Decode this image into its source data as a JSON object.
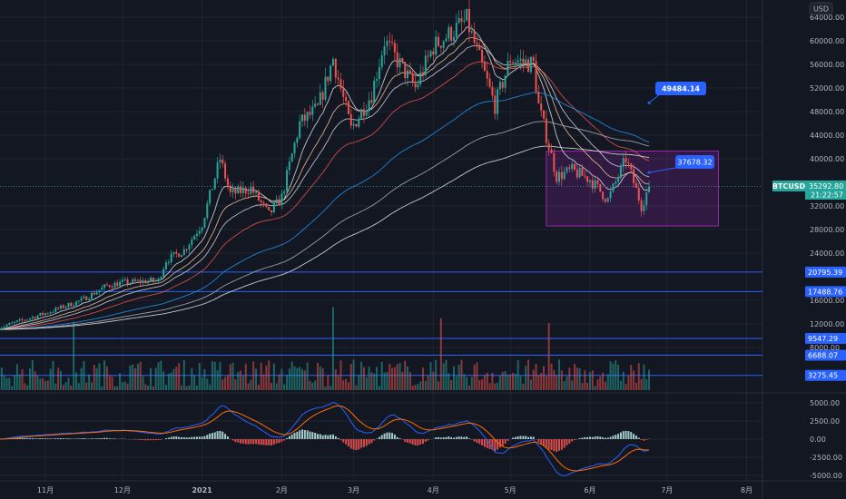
{
  "symbol": "BTCUSD",
  "currency": "USD",
  "last_price": "35292.80",
  "countdown": "21:22:57",
  "colors": {
    "up": "#26a69a",
    "down": "#ef5350",
    "line_level": "#2962ff",
    "box": "#9c27b0",
    "bg": "#131722"
  },
  "chart_data": [
    {
      "type": "candlestick",
      "pane": "price",
      "ylim": [
        0,
        66000
      ],
      "y_ticks": [
        "64000.00",
        "60000.00",
        "56000.00",
        "52000.00",
        "48000.00",
        "44000.00",
        "40000.00",
        "32000.00",
        "28000.00",
        "24000.00",
        "16000.00",
        "12000.00",
        "8000.00"
      ],
      "y_tick_values": [
        64000,
        60000,
        56000,
        52000,
        48000,
        44000,
        40000,
        32000,
        28000,
        24000,
        16000,
        12000,
        8000
      ],
      "x_ticks": [
        "11月",
        "12月",
        "2021",
        "2月",
        "3月",
        "4月",
        "5月",
        "6月",
        "7月",
        "8月"
      ],
      "x_tick_dates": [
        "2020-11-01",
        "2020-12-01",
        "2021-01-01",
        "2021-02-01",
        "2021-03-01",
        "2021-04-01",
        "2021-05-01",
        "2021-06-01",
        "2021-07-01",
        "2021-08-01"
      ],
      "price_path": [
        [
          "2020-10-14",
          11400
        ],
        [
          "2020-11-01",
          13800
        ],
        [
          "2020-11-15",
          16000
        ],
        [
          "2020-11-25",
          18500
        ],
        [
          "2020-12-01",
          19000
        ],
        [
          "2020-12-15",
          19400
        ],
        [
          "2020-12-18",
          22800
        ],
        [
          "2020-12-25",
          24500
        ],
        [
          "2021-01-01",
          29000
        ],
        [
          "2021-01-08",
          40000
        ],
        [
          "2021-01-12",
          34000
        ],
        [
          "2021-01-20",
          35000
        ],
        [
          "2021-01-27",
          30500
        ],
        [
          "2021-02-01",
          33500
        ],
        [
          "2021-02-08",
          46000
        ],
        [
          "2021-02-15",
          48500
        ],
        [
          "2021-02-21",
          57000
        ],
        [
          "2021-02-28",
          45000
        ],
        [
          "2021-03-08",
          51000
        ],
        [
          "2021-03-13",
          60000
        ],
        [
          "2021-03-25",
          52000
        ],
        [
          "2021-04-01",
          59000
        ],
        [
          "2021-04-14",
          63500
        ],
        [
          "2021-04-25",
          49000
        ],
        [
          "2021-05-01",
          57000
        ],
        [
          "2021-05-10",
          56000
        ],
        [
          "2021-05-12",
          49000
        ],
        [
          "2021-05-19",
          37000
        ],
        [
          "2021-05-25",
          38000
        ],
        [
          "2021-06-01",
          36500
        ],
        [
          "2021-06-08",
          33000
        ],
        [
          "2021-06-15",
          40000
        ],
        [
          "2021-06-21",
          32000
        ],
        [
          "2021-06-24",
          35292.8
        ]
      ],
      "horizontal_levels": [
        "20795.39",
        "17488.76",
        "9547.29",
        "6688.07",
        "3275.45"
      ],
      "callouts": [
        {
          "text": "49484.14",
          "anchor_date": "2021-06-24",
          "anchor_price": 49484.14
        },
        {
          "text": "37678.32",
          "anchor_date": "2021-06-24",
          "anchor_price": 37678.32
        }
      ],
      "rectangle": {
        "from": "2021-05-15",
        "to": "2021-07-21",
        "top": 41300,
        "bottom": 28600
      },
      "moving_averages": [
        10,
        20,
        30,
        50,
        100,
        150,
        200
      ]
    },
    {
      "type": "bar",
      "pane": "volume"
    },
    {
      "type": "macd",
      "pane": "macd",
      "ylim": [
        -6500,
        6500
      ],
      "y_ticks": [
        "5000.00",
        "2500.00",
        "0.00",
        "-2500.00",
        "-5000.00"
      ],
      "y_tick_values": [
        5000,
        2500,
        0,
        -2500,
        -5000
      ]
    }
  ]
}
